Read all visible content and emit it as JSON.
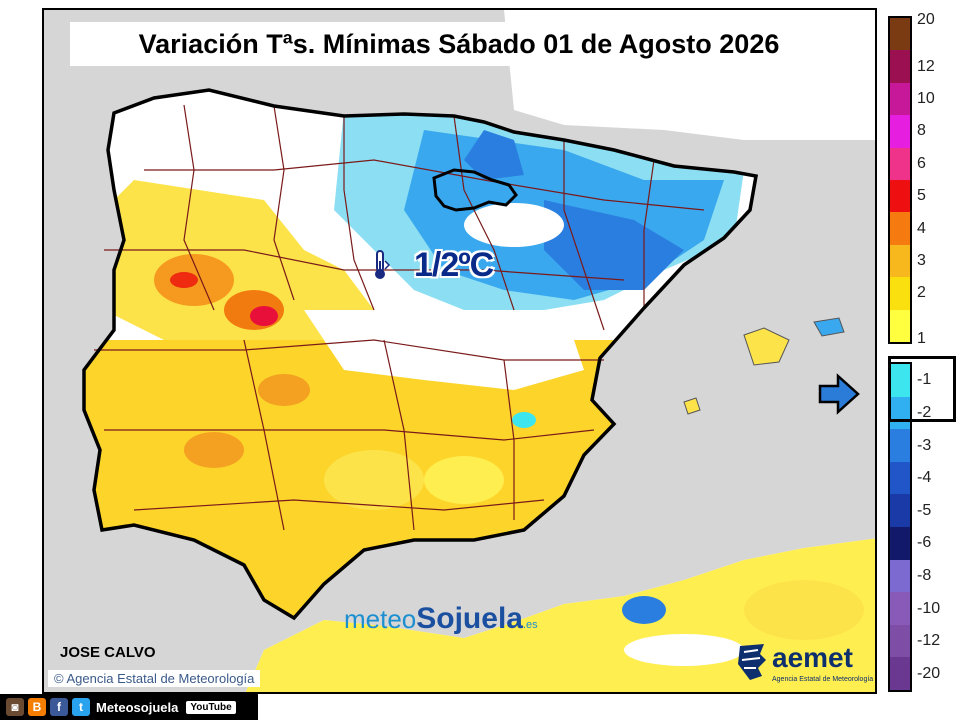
{
  "title": "Variación Tªs. Mínimas Sábado 01 de Agosto 2026",
  "highlight_value": "1/2ºC",
  "author": "JOSE CALVO",
  "agency_credit": "Agencia Estatal de Meteorología",
  "watermark": {
    "part1": "meteo",
    "part2": "Sojuela",
    "part3": ".es"
  },
  "aemet_logo": {
    "name": "aemet",
    "subtitle": "Agencia Estatal de Meteorología"
  },
  "social": {
    "handle": "Meteosojuela",
    "youtube": "YouTube",
    "icons": [
      "instagram-icon",
      "blogger-icon",
      "facebook-icon",
      "twitter-icon"
    ]
  },
  "legend": {
    "positive": [
      {
        "label": "20",
        "color": "#7a3a12"
      },
      {
        "label": "12",
        "color": "#9a1050"
      },
      {
        "label": "10",
        "color": "#c8189a"
      },
      {
        "label": "8",
        "color": "#e61ee0"
      },
      {
        "label": "6",
        "color": "#f0338a"
      },
      {
        "label": "5",
        "color": "#ee1010"
      },
      {
        "label": "4",
        "color": "#f57a10"
      },
      {
        "label": "3",
        "color": "#f7b81e"
      },
      {
        "label": "2",
        "color": "#fbe010"
      },
      {
        "label": "1",
        "color": "#ffff40"
      }
    ],
    "negative": [
      {
        "label": "-1",
        "color": "#3de6ef"
      },
      {
        "label": "-2",
        "color": "#30b0f0"
      },
      {
        "label": "-3",
        "color": "#2a7ee0"
      },
      {
        "label": "-4",
        "color": "#2156c8"
      },
      {
        "label": "-5",
        "color": "#1a3aa8"
      },
      {
        "label": "-6",
        "color": "#12186a"
      },
      {
        "label": "-8",
        "color": "#7c6ad0"
      },
      {
        "label": "-10",
        "color": "#8a5ab8"
      },
      {
        "label": "-12",
        "color": "#7e4ea6"
      },
      {
        "label": "-20",
        "color": "#6a3890"
      }
    ]
  },
  "colors": {
    "sea": "#d6d6d6",
    "warm": "#fbd21a",
    "cold": "#2a8ae8",
    "borders": "#7a1a1a"
  }
}
